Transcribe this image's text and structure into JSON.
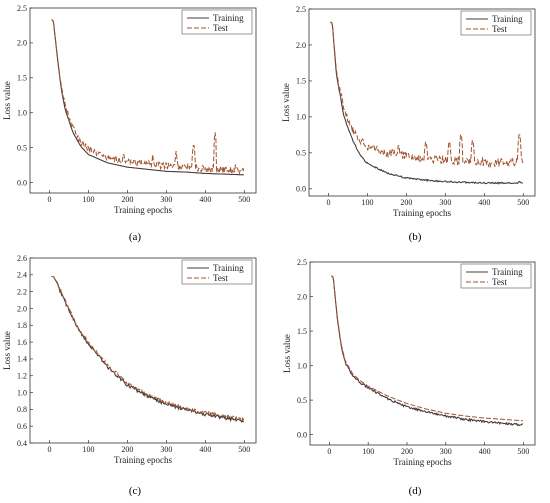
{
  "chart_data": [
    {
      "type": "line",
      "panel_label": "(a)",
      "xlabel": "Training epochs",
      "ylabel": "Loss value",
      "xlim": [
        -50,
        530
      ],
      "ylim": [
        -0.15,
        2.5
      ],
      "xticks": [
        0,
        100,
        200,
        300,
        400,
        500
      ],
      "yticks": [
        0.0,
        0.5,
        1.0,
        1.5,
        2.0,
        2.5
      ],
      "grid": false,
      "legend": "top-right",
      "series": [
        {
          "name": "Training",
          "style": "solid",
          "color": "#4a3b3b",
          "x": [
            5,
            10,
            20,
            30,
            40,
            60,
            80,
            100,
            150,
            200,
            250,
            300,
            350,
            400,
            450,
            500
          ],
          "values": [
            2.33,
            2.32,
            1.8,
            1.35,
            1.05,
            0.72,
            0.52,
            0.4,
            0.28,
            0.22,
            0.19,
            0.16,
            0.15,
            0.13,
            0.12,
            0.11
          ]
        },
        {
          "name": "Test",
          "style": "dashed",
          "color": "#a0522d",
          "x": [
            5,
            10,
            20,
            30,
            40,
            60,
            80,
            100,
            150,
            200,
            250,
            300,
            350,
            400,
            450,
            500
          ],
          "values": [
            2.33,
            2.32,
            1.82,
            1.38,
            1.1,
            0.78,
            0.58,
            0.48,
            0.36,
            0.3,
            0.26,
            0.24,
            0.22,
            0.2,
            0.18,
            0.16
          ],
          "noise": 0.05,
          "spikes": [
            [
              190,
              0.45
            ],
            [
              265,
              0.4
            ],
            [
              325,
              0.45
            ],
            [
              370,
              0.58
            ],
            [
              425,
              0.72
            ],
            [
              478,
              0.3
            ]
          ]
        }
      ]
    },
    {
      "type": "line",
      "panel_label": "(b)",
      "xlabel": "Training epochs",
      "ylabel": "Loss value",
      "xlim": [
        -50,
        530
      ],
      "ylim": [
        -0.1,
        2.5
      ],
      "xticks": [
        0,
        100,
        200,
        300,
        400,
        500
      ],
      "yticks": [
        0.0,
        0.5,
        1.0,
        1.5,
        2.0,
        2.5
      ],
      "grid": false,
      "legend": "top-right",
      "series": [
        {
          "name": "Training",
          "style": "solid",
          "color": "#4a3b3b",
          "x": [
            5,
            10,
            20,
            30,
            40,
            60,
            80,
            100,
            150,
            200,
            250,
            300,
            350,
            400,
            450,
            500
          ],
          "values": [
            2.32,
            2.3,
            1.6,
            1.3,
            1.0,
            0.7,
            0.48,
            0.35,
            0.22,
            0.15,
            0.12,
            0.1,
            0.09,
            0.08,
            0.08,
            0.08
          ],
          "noise": 0.01,
          "spikes": [
            [
              490,
              0.15
            ]
          ]
        },
        {
          "name": "Test",
          "style": "dashed",
          "color": "#a0522d",
          "x": [
            5,
            10,
            20,
            30,
            40,
            60,
            80,
            100,
            150,
            200,
            250,
            300,
            350,
            400,
            450,
            500
          ],
          "values": [
            2.32,
            2.3,
            1.65,
            1.35,
            1.1,
            0.85,
            0.68,
            0.58,
            0.5,
            0.45,
            0.42,
            0.4,
            0.38,
            0.37,
            0.36,
            0.4
          ],
          "noise": 0.06,
          "spikes": [
            [
              180,
              0.65
            ],
            [
              250,
              0.7
            ],
            [
              310,
              0.7
            ],
            [
              340,
              0.8
            ],
            [
              370,
              0.72
            ],
            [
              490,
              0.8
            ]
          ]
        }
      ]
    },
    {
      "type": "line",
      "panel_label": "(c)",
      "xlabel": "Training epochs",
      "ylabel": "Loss value",
      "xlim": [
        -50,
        530
      ],
      "ylim": [
        0.4,
        2.6
      ],
      "xticks": [
        0,
        100,
        200,
        300,
        400,
        500
      ],
      "yticks": [
        0.4,
        0.6,
        0.8,
        1.0,
        1.2,
        1.4,
        1.6,
        1.8,
        2.0,
        2.2,
        2.4,
        2.6
      ],
      "grid": false,
      "legend": "top-right",
      "series": [
        {
          "name": "Training",
          "style": "solid",
          "color": "#4a3b3b",
          "x": [
            5,
            10,
            20,
            30,
            50,
            75,
            100,
            150,
            200,
            250,
            300,
            350,
            400,
            450,
            500
          ],
          "values": [
            2.38,
            2.38,
            2.3,
            2.18,
            1.98,
            1.74,
            1.58,
            1.3,
            1.09,
            0.96,
            0.86,
            0.8,
            0.74,
            0.7,
            0.66
          ],
          "noise": 0.02
        },
        {
          "name": "Test",
          "style": "dashed",
          "color": "#a0522d",
          "x": [
            5,
            10,
            20,
            30,
            50,
            75,
            100,
            150,
            200,
            250,
            300,
            350,
            400,
            450,
            500
          ],
          "values": [
            2.38,
            2.38,
            2.31,
            2.2,
            1.99,
            1.76,
            1.6,
            1.32,
            1.11,
            0.98,
            0.88,
            0.81,
            0.76,
            0.72,
            0.68
          ],
          "noise": 0.02
        }
      ]
    },
    {
      "type": "line",
      "panel_label": "(d)",
      "xlabel": "Training epochs",
      "ylabel": "Loss value",
      "xlim": [
        -50,
        530
      ],
      "ylim": [
        -0.15,
        2.5
      ],
      "xticks": [
        0,
        100,
        200,
        300,
        400,
        500
      ],
      "yticks": [
        0.0,
        0.5,
        1.0,
        1.5,
        2.0,
        2.5
      ],
      "grid": false,
      "legend": "top-right",
      "series": [
        {
          "name": "Training",
          "style": "solid",
          "color": "#4a3b3b",
          "x": [
            5,
            10,
            20,
            30,
            40,
            60,
            80,
            100,
            150,
            200,
            250,
            300,
            350,
            400,
            450,
            500
          ],
          "values": [
            2.3,
            2.28,
            1.7,
            1.3,
            1.05,
            0.85,
            0.75,
            0.68,
            0.52,
            0.4,
            0.33,
            0.27,
            0.22,
            0.19,
            0.16,
            0.14
          ],
          "noise": 0.015
        },
        {
          "name": "Test",
          "style": "dashed",
          "color": "#a0522d",
          "x": [
            5,
            10,
            20,
            30,
            40,
            60,
            80,
            100,
            150,
            200,
            250,
            300,
            350,
            400,
            450,
            500
          ],
          "values": [
            2.3,
            2.28,
            1.72,
            1.32,
            1.08,
            0.88,
            0.78,
            0.7,
            0.56,
            0.45,
            0.37,
            0.31,
            0.27,
            0.24,
            0.22,
            0.2
          ]
        }
      ]
    }
  ]
}
